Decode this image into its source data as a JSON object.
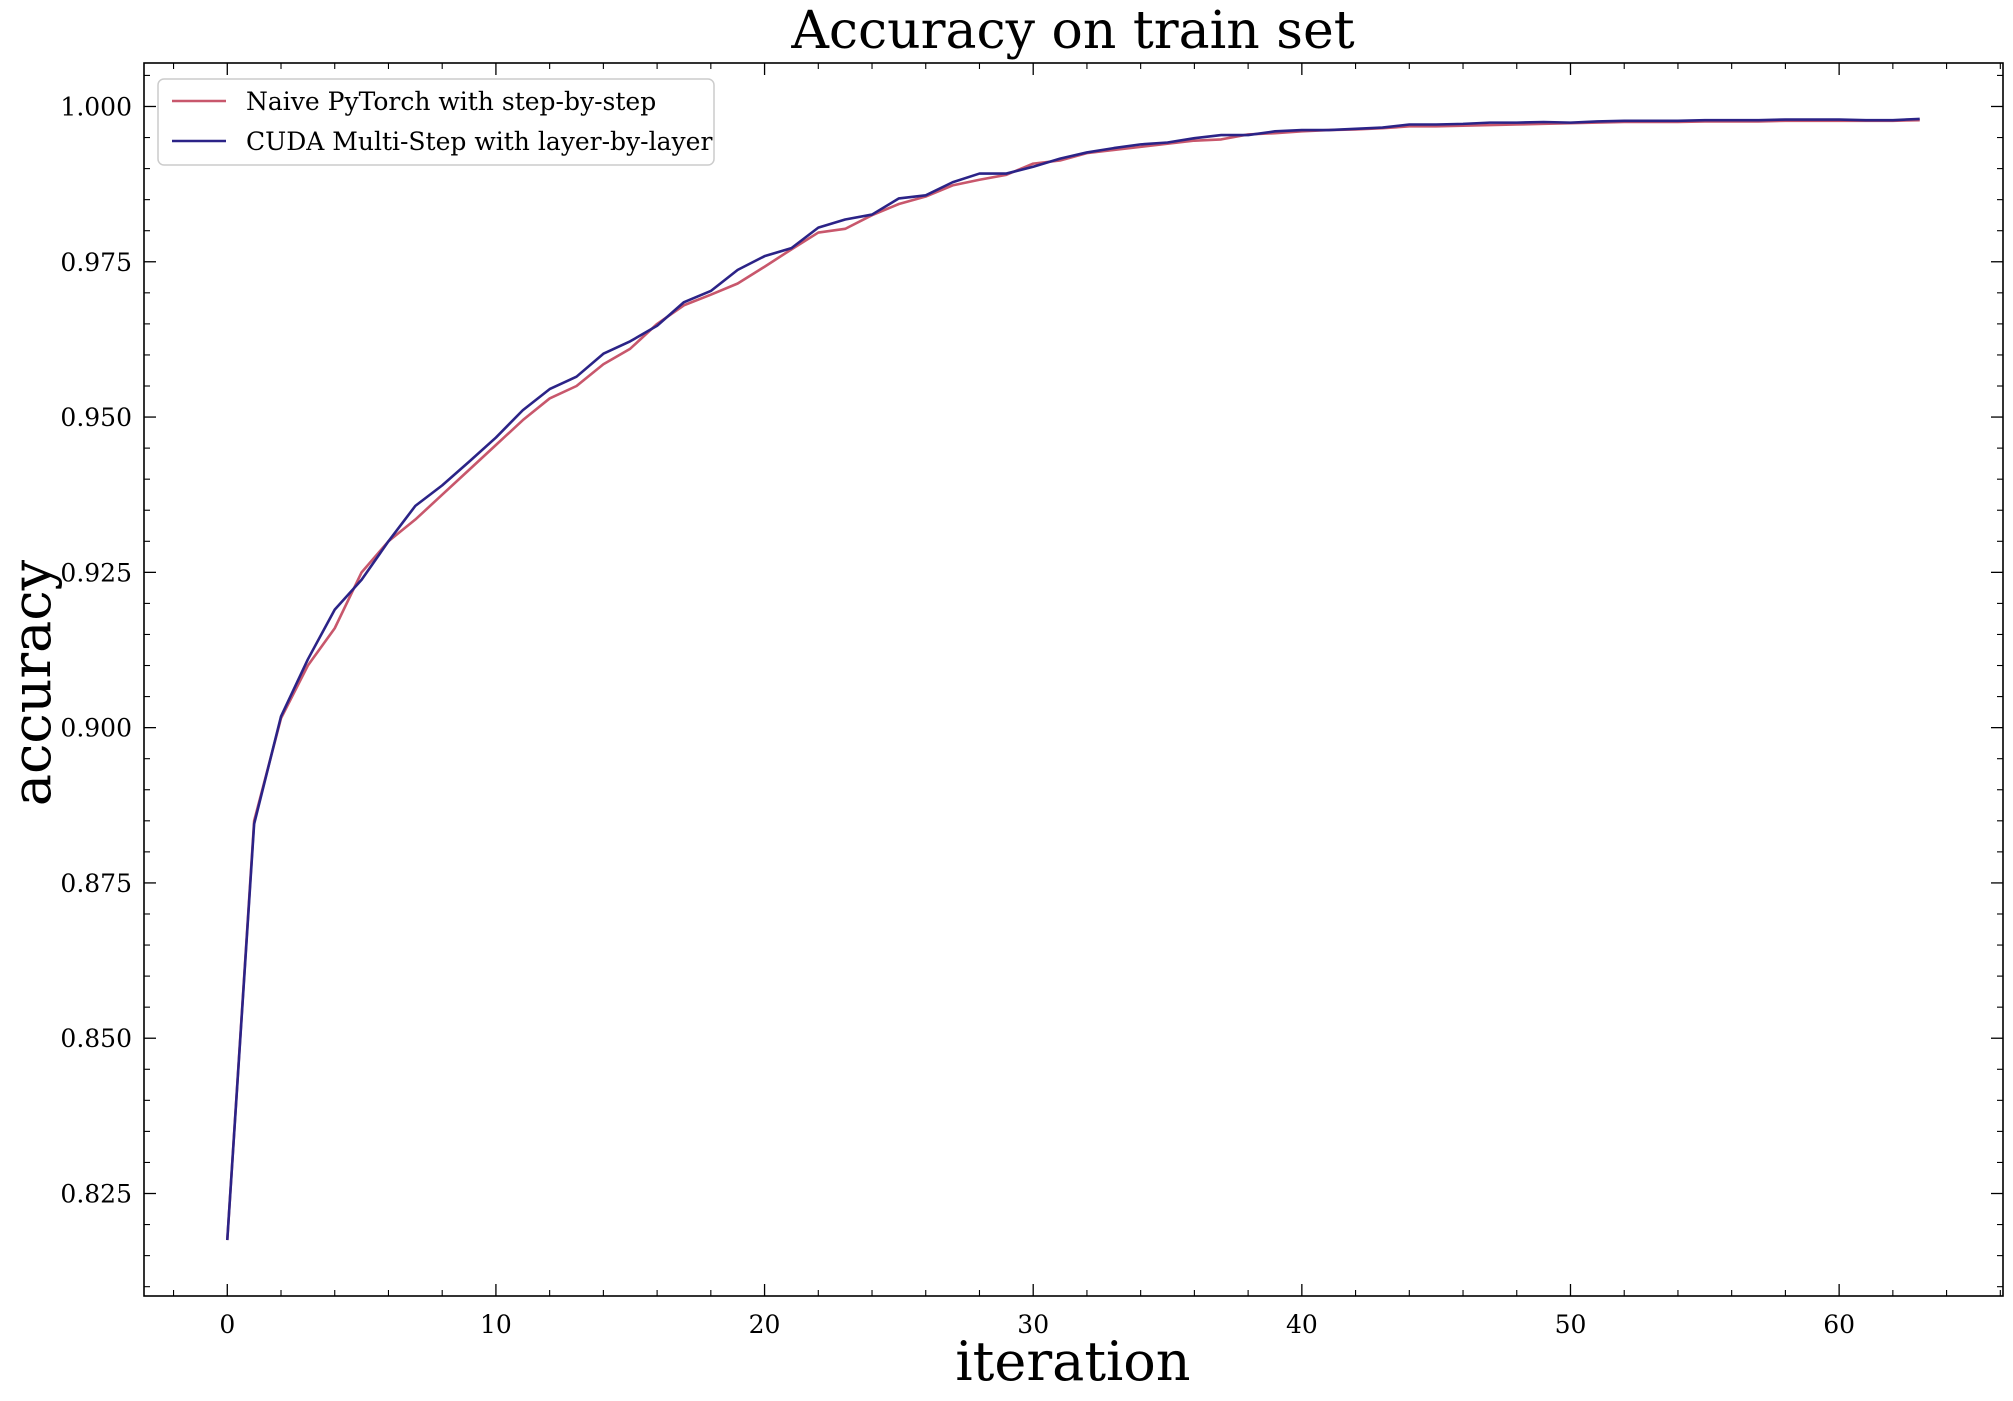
{
  "chart_data": {
    "type": "line",
    "title": "Accuracy on train set",
    "xlabel": "iteration",
    "ylabel": "accuracy",
    "xlim": [
      -3.1,
      66.1
    ],
    "ylim": [
      0.8085,
      1.007
    ],
    "xticks": [
      0,
      10,
      20,
      30,
      40,
      50,
      60
    ],
    "xtick_labels": [
      "0",
      "10",
      "20",
      "30",
      "40",
      "50",
      "60"
    ],
    "yticks": [
      0.825,
      0.85,
      0.875,
      0.9,
      0.925,
      0.95,
      0.975,
      1.0
    ],
    "ytick_labels": [
      "0.825",
      "0.850",
      "0.875",
      "0.900",
      "0.925",
      "0.950",
      "0.975",
      "1.000"
    ],
    "grid": false,
    "legend_position": "top-left",
    "x": [
      0,
      1,
      2,
      3,
      4,
      5,
      6,
      7,
      8,
      9,
      10,
      11,
      12,
      13,
      14,
      15,
      16,
      17,
      18,
      19,
      20,
      21,
      22,
      23,
      24,
      25,
      26,
      27,
      28,
      29,
      30,
      31,
      32,
      33,
      34,
      35,
      36,
      37,
      38,
      39,
      40,
      41,
      42,
      43,
      44,
      45,
      46,
      47,
      48,
      49,
      50,
      51,
      52,
      53,
      54,
      55,
      56,
      57,
      58,
      59,
      60,
      61,
      62,
      63
    ],
    "series": [
      {
        "name": "Naive PyTorch with step-by-step",
        "color": "#c8576c",
        "values": [
          0.8175,
          0.885,
          0.9015,
          0.91,
          0.916,
          0.925,
          0.93,
          0.9335,
          0.9375,
          0.9415,
          0.9455,
          0.9495,
          0.953,
          0.955,
          0.9585,
          0.961,
          0.965,
          0.968,
          0.9697,
          0.9715,
          0.9742,
          0.977,
          0.9797,
          0.9803,
          0.9825,
          0.9843,
          0.9855,
          0.9873,
          0.9882,
          0.989,
          0.9908,
          0.9913,
          0.9925,
          0.993,
          0.9935,
          0.994,
          0.9945,
          0.9947,
          0.9955,
          0.9957,
          0.996,
          0.9962,
          0.9963,
          0.9965,
          0.9968,
          0.9968,
          0.9969,
          0.997,
          0.9971,
          0.9972,
          0.9973,
          0.9974,
          0.9975,
          0.9975,
          0.9975,
          0.9976,
          0.9976,
          0.9976,
          0.9977,
          0.9977,
          0.9977,
          0.9977,
          0.9977,
          0.9978
        ]
      },
      {
        "name": "CUDA Multi-Step with layer-by-layer",
        "color": "#2b2387",
        "values": [
          0.8175,
          0.8845,
          0.9018,
          0.911,
          0.919,
          0.9238,
          0.93,
          0.9357,
          0.939,
          0.9428,
          0.9467,
          0.9511,
          0.9545,
          0.9565,
          0.9602,
          0.9622,
          0.9647,
          0.9685,
          0.9703,
          0.9737,
          0.9759,
          0.9772,
          0.9805,
          0.9818,
          0.9826,
          0.9852,
          0.9857,
          0.9878,
          0.9892,
          0.9892,
          0.9903,
          0.9916,
          0.9926,
          0.9933,
          0.9939,
          0.9942,
          0.9949,
          0.9954,
          0.9954,
          0.996,
          0.9962,
          0.9962,
          0.9964,
          0.9966,
          0.9971,
          0.9971,
          0.9972,
          0.9974,
          0.9974,
          0.9975,
          0.9974,
          0.9976,
          0.9977,
          0.9977,
          0.9977,
          0.9978,
          0.9978,
          0.9978,
          0.9979,
          0.9979,
          0.9979,
          0.9978,
          0.9978,
          0.998
        ]
      }
    ]
  }
}
